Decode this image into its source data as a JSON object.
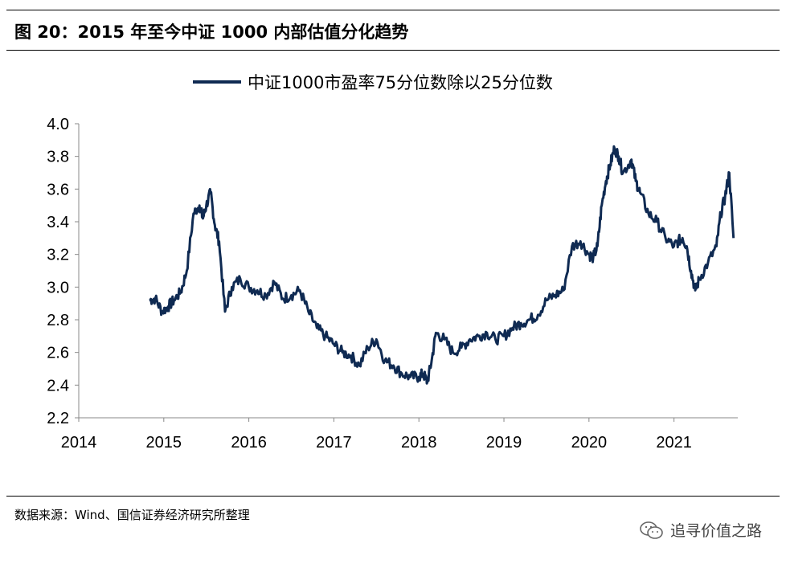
{
  "header": {
    "title": "图 20：2015 年至今中证 1000 内部估值分化趋势"
  },
  "footer": {
    "source": "数据来源：Wind、国信证券经济研究所整理",
    "watermark": "追寻价值之路"
  },
  "chart_data": {
    "type": "line",
    "title": "",
    "xlabel": "",
    "ylabel": "",
    "xlim": [
      2014,
      2021.75
    ],
    "ylim": [
      2.2,
      4.0
    ],
    "x_ticks": [
      "2014",
      "2015",
      "2016",
      "2017",
      "2018",
      "2019",
      "2020",
      "2021"
    ],
    "y_ticks": [
      "2.2",
      "2.4",
      "2.6",
      "2.8",
      "3.0",
      "3.2",
      "3.4",
      "3.6",
      "3.8",
      "4.0"
    ],
    "grid": false,
    "legend_position": "top-center",
    "series": [
      {
        "name": "中证1000市盈率75分位数除以25分位数",
        "color": "#0f2a52",
        "x": [
          2014.83,
          2014.9,
          2014.98,
          2015.05,
          2015.12,
          2015.2,
          2015.27,
          2015.35,
          2015.42,
          2015.46,
          2015.5,
          2015.55,
          2015.6,
          2015.65,
          2015.72,
          2015.8,
          2015.9,
          2016.0,
          2016.1,
          2016.2,
          2016.3,
          2016.4,
          2016.5,
          2016.6,
          2016.7,
          2016.8,
          2016.9,
          2017.0,
          2017.1,
          2017.2,
          2017.3,
          2017.4,
          2017.5,
          2017.6,
          2017.7,
          2017.8,
          2017.9,
          2018.0,
          2018.05,
          2018.1,
          2018.15,
          2018.2,
          2018.3,
          2018.4,
          2018.5,
          2018.6,
          2018.7,
          2018.8,
          2018.9,
          2019.0,
          2019.1,
          2019.2,
          2019.3,
          2019.4,
          2019.5,
          2019.6,
          2019.7,
          2019.8,
          2019.9,
          2020.0,
          2020.05,
          2020.1,
          2020.15,
          2020.2,
          2020.25,
          2020.3,
          2020.35,
          2020.4,
          2020.5,
          2020.55,
          2020.6,
          2020.7,
          2020.8,
          2020.9,
          2021.0,
          2021.05,
          2021.1,
          2021.15,
          2021.2,
          2021.25,
          2021.3,
          2021.4,
          2021.5,
          2021.55,
          2021.6,
          2021.65,
          2021.7
        ],
        "y": [
          2.92,
          2.93,
          2.85,
          2.88,
          2.92,
          2.97,
          3.1,
          3.45,
          3.5,
          3.42,
          3.5,
          3.58,
          3.38,
          3.28,
          2.85,
          3.0,
          3.05,
          3.0,
          2.98,
          2.95,
          3.03,
          2.93,
          2.95,
          2.98,
          2.85,
          2.75,
          2.7,
          2.65,
          2.6,
          2.58,
          2.52,
          2.63,
          2.68,
          2.55,
          2.52,
          2.47,
          2.45,
          2.45,
          2.47,
          2.42,
          2.55,
          2.72,
          2.68,
          2.6,
          2.63,
          2.68,
          2.7,
          2.72,
          2.68,
          2.7,
          2.75,
          2.78,
          2.8,
          2.83,
          2.92,
          2.95,
          2.98,
          3.25,
          3.28,
          3.2,
          3.18,
          3.25,
          3.5,
          3.65,
          3.75,
          3.85,
          3.8,
          3.7,
          3.78,
          3.65,
          3.58,
          3.45,
          3.4,
          3.3,
          3.25,
          3.28,
          3.3,
          3.25,
          3.1,
          2.98,
          3.05,
          3.15,
          3.25,
          3.45,
          3.55,
          3.7,
          3.3
        ]
      }
    ]
  }
}
